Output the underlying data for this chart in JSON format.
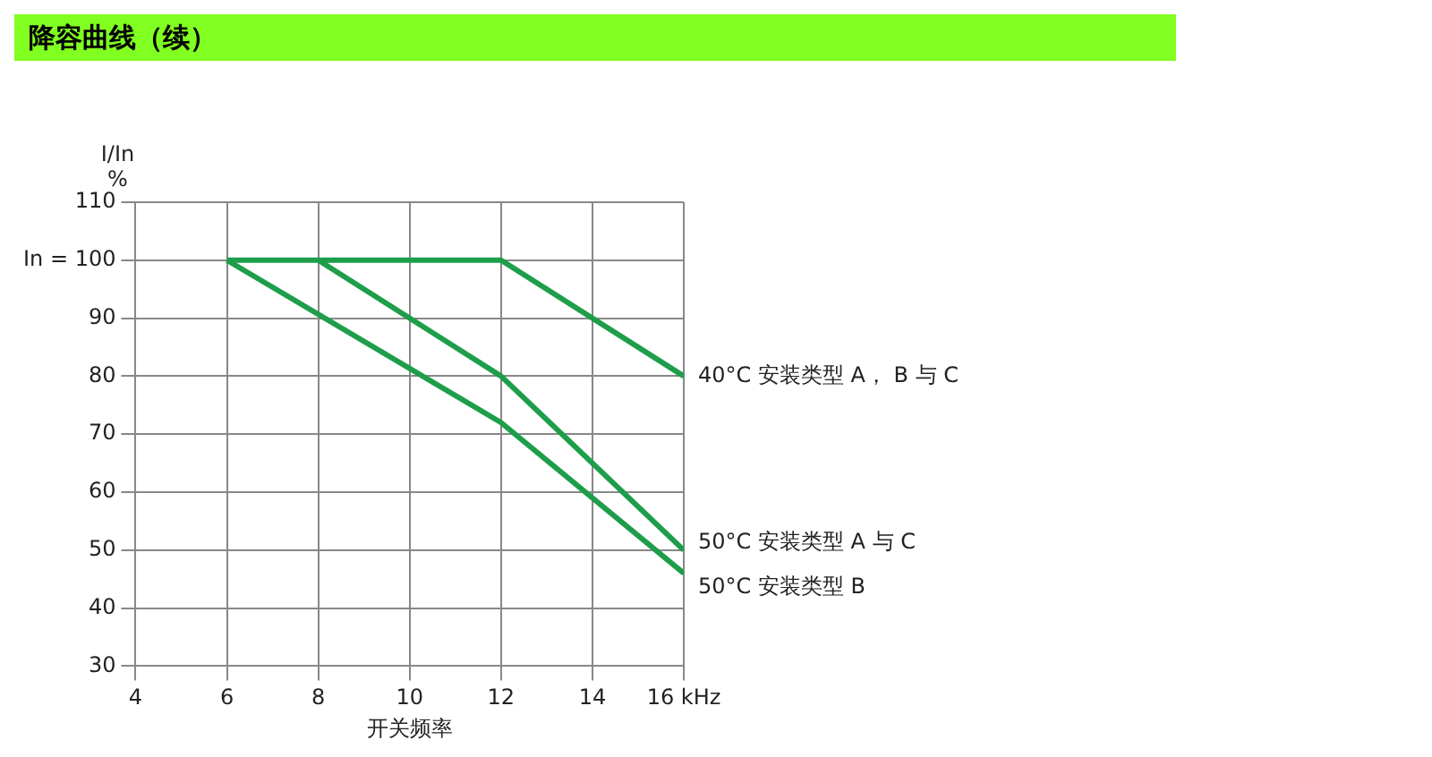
{
  "chart_data": {
    "type": "line",
    "title": "降容曲线（续）",
    "xlabel": "开关频率",
    "ylabel": "I/In\n%",
    "xlim": [
      4,
      16
    ],
    "xticks": [
      4,
      6,
      8,
      10,
      12,
      14,
      {
        "value": 16,
        "label": "16 kHz"
      }
    ],
    "ylim": [
      30,
      110
    ],
    "yticks": [
      30,
      40,
      50,
      60,
      70,
      80,
      90,
      {
        "value": 100,
        "label": "In = 100"
      },
      110
    ],
    "grid": true,
    "legend": false,
    "marker": "none",
    "line_style": "solid",
    "series": [
      {
        "name": "40°C 安装类型 A， B 与 C",
        "color": "#1e9e4a",
        "x": [
          6,
          12,
          16
        ],
        "values": [
          100,
          100,
          80
        ]
      },
      {
        "name": "50°C 安装类型 A 与 C",
        "color": "#1e9e4a",
        "x": [
          8,
          12,
          16
        ],
        "values": [
          100,
          80,
          50
        ]
      },
      {
        "name": "50°C 安装类型 B",
        "color": "#1e9e4a",
        "x": [
          6,
          12,
          16
        ],
        "values": [
          100,
          72,
          46
        ]
      }
    ]
  }
}
